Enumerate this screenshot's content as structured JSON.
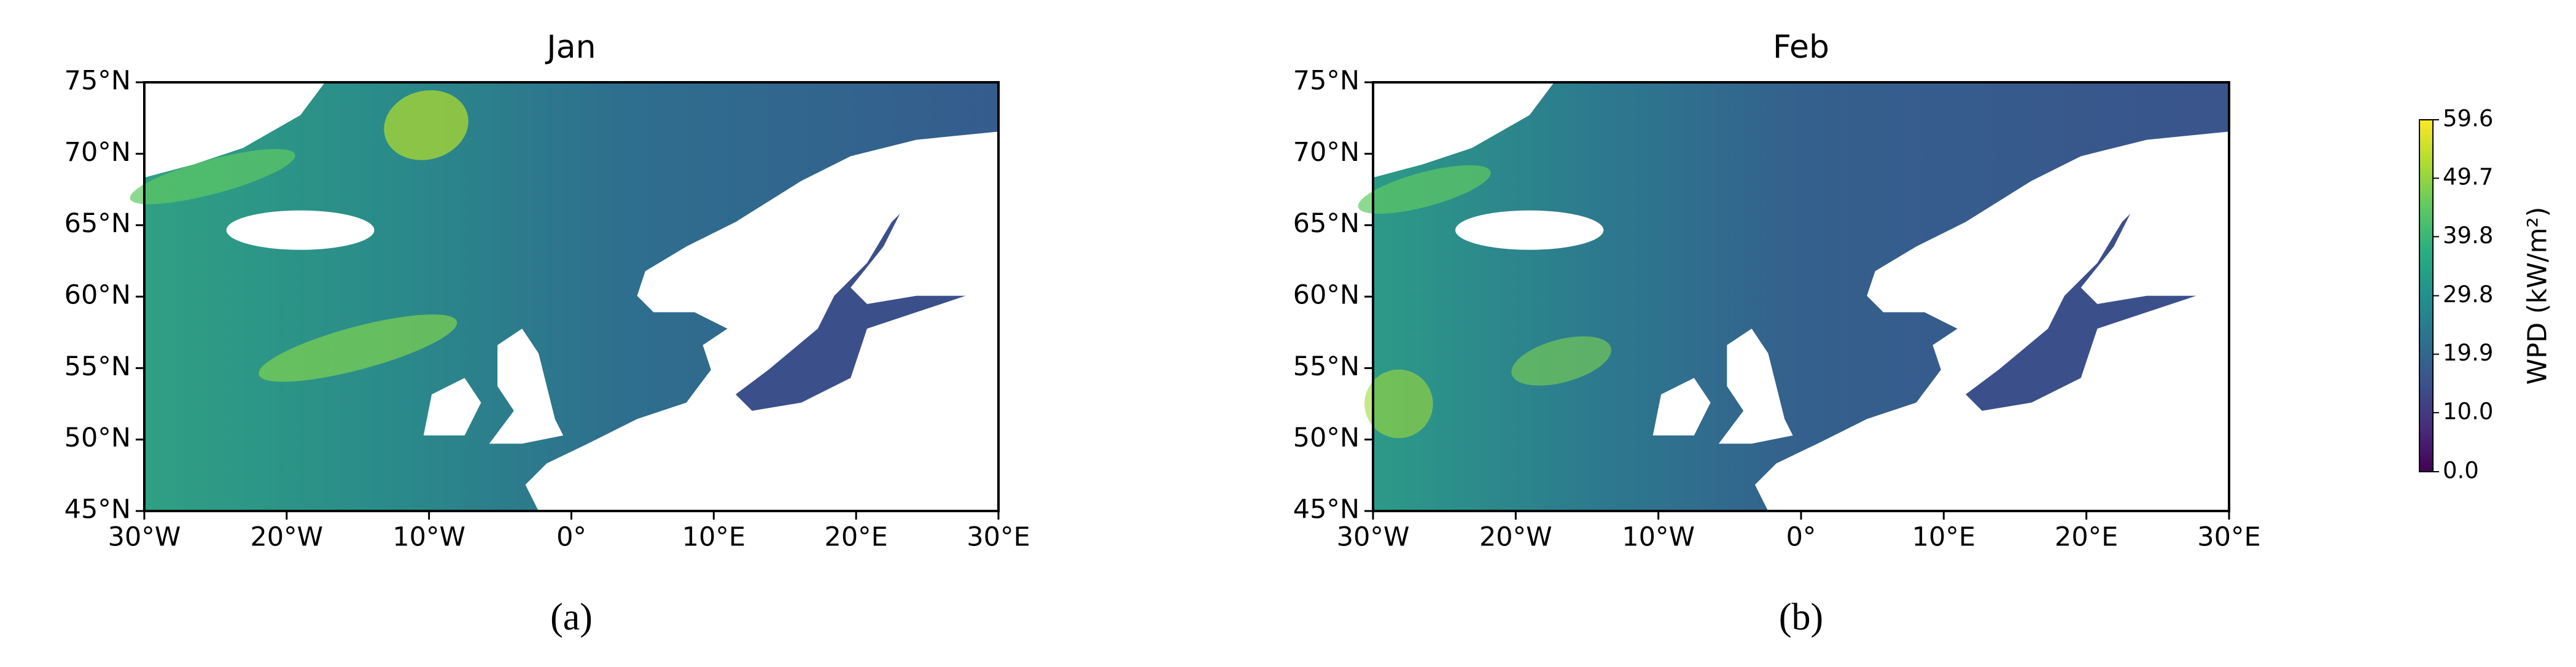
{
  "chart_data": [
    {
      "type": "map",
      "title": "Jan",
      "label": "(a)",
      "xlim": [
        -30,
        30
      ],
      "ylim": [
        45,
        75
      ],
      "xticks": [
        {
          "value": -30,
          "label": "30°W"
        },
        {
          "value": -20,
          "label": "20°W"
        },
        {
          "value": -10,
          "label": "10°W"
        },
        {
          "value": 0,
          "label": "0°"
        },
        {
          "value": 10,
          "label": "10°E"
        },
        {
          "value": 20,
          "label": "20°E"
        },
        {
          "value": 30,
          "label": "30°E"
        }
      ],
      "yticks": [
        {
          "value": 45,
          "label": "45°N"
        },
        {
          "value": 50,
          "label": "50°N"
        },
        {
          "value": 55,
          "label": "55°N"
        },
        {
          "value": 60,
          "label": "60°N"
        },
        {
          "value": 65,
          "label": "65°N"
        },
        {
          "value": 70,
          "label": "70°N"
        },
        {
          "value": 75,
          "label": "75°N"
        }
      ]
    },
    {
      "type": "map",
      "title": "Feb",
      "label": "(b)",
      "xlim": [
        -30,
        30
      ],
      "ylim": [
        45,
        75
      ],
      "xticks": [
        {
          "value": -30,
          "label": "30°W"
        },
        {
          "value": -20,
          "label": "20°W"
        },
        {
          "value": -10,
          "label": "10°W"
        },
        {
          "value": 0,
          "label": "0°"
        },
        {
          "value": 10,
          "label": "10°E"
        },
        {
          "value": 20,
          "label": "20°E"
        },
        {
          "value": 30,
          "label": "30°E"
        }
      ],
      "yticks": [
        {
          "value": 45,
          "label": "45°N"
        },
        {
          "value": 50,
          "label": "50°N"
        },
        {
          "value": 55,
          "label": "55°N"
        },
        {
          "value": 60,
          "label": "60°N"
        },
        {
          "value": 65,
          "label": "65°N"
        },
        {
          "value": 70,
          "label": "70°N"
        },
        {
          "value": 75,
          "label": "75°N"
        }
      ]
    }
  ],
  "colorbar": {
    "label": "WPD (kW/m²)",
    "colormap": "viridis",
    "lim": [
      0,
      59.6
    ],
    "ticks": [
      {
        "value": 0,
        "label": "0.0"
      },
      {
        "value": 10,
        "label": "10.0"
      },
      19.9,
      29.8,
      39.8,
      49.7,
      59.6
    ]
  }
}
